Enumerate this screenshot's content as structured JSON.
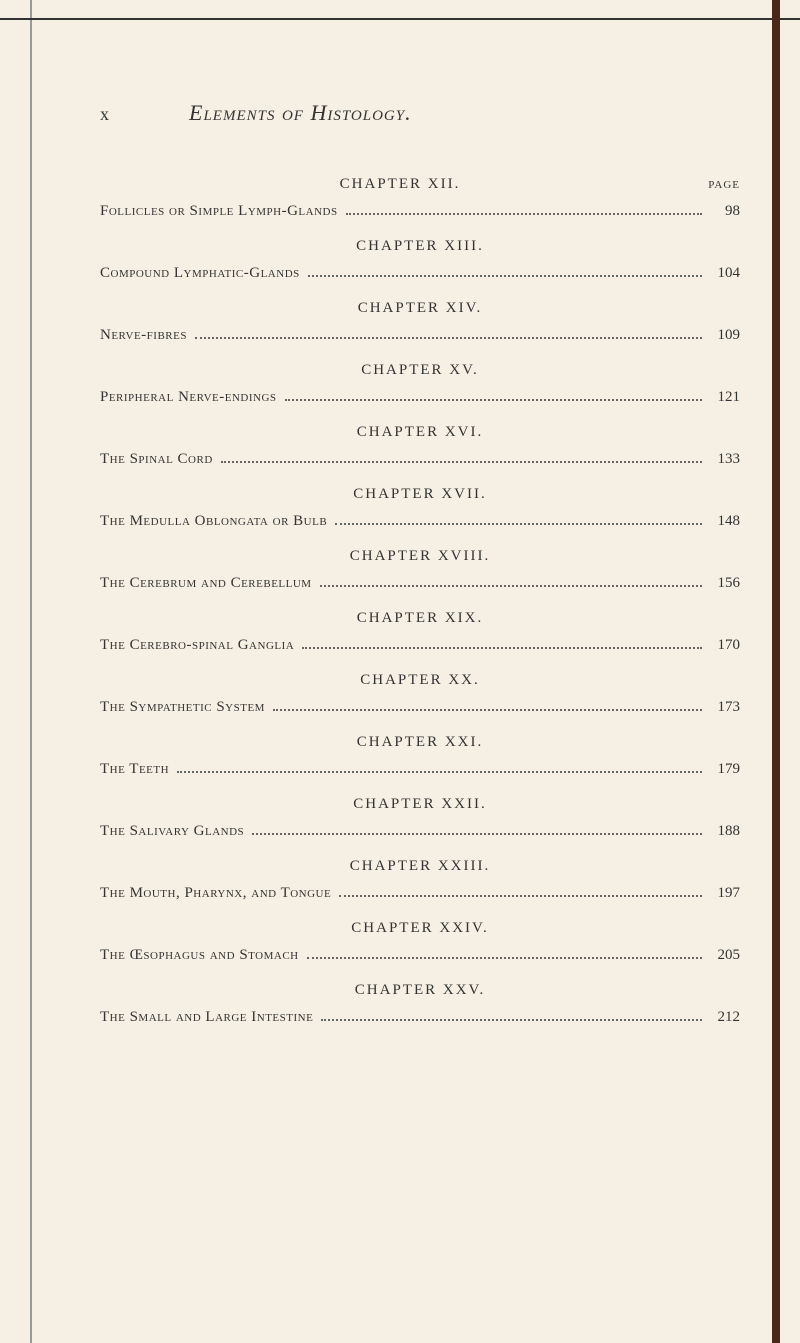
{
  "page": {
    "number_left": "x",
    "book_title": "Elements of Histology.",
    "page_label": "PAGE"
  },
  "chapters": [
    {
      "title": "CHAPTER XII.",
      "entry": "Follicles or Simple Lymph-Glands",
      "page": "98",
      "show_page_label": true
    },
    {
      "title": "CHAPTER XIII.",
      "entry": "Compound Lymphatic-Glands",
      "page": "104"
    },
    {
      "title": "CHAPTER XIV.",
      "entry": "Nerve-fibres",
      "page": "109"
    },
    {
      "title": "CHAPTER XV.",
      "entry": "Peripheral Nerve-endings",
      "page": "121"
    },
    {
      "title": "CHAPTER XVI.",
      "entry": "The Spinal Cord",
      "page": "133"
    },
    {
      "title": "CHAPTER XVII.",
      "entry": "The Medulla Oblongata or Bulb",
      "page": "148"
    },
    {
      "title": "CHAPTER XVIII.",
      "entry": "The Cerebrum and Cerebellum",
      "page": "156"
    },
    {
      "title": "CHAPTER XIX.",
      "entry": "The Cerebro-spinal Ganglia",
      "page": "170"
    },
    {
      "title": "CHAPTER XX.",
      "entry": "The Sympathetic System",
      "page": "173"
    },
    {
      "title": "CHAPTER XXI.",
      "entry": "The Teeth",
      "page": "179"
    },
    {
      "title": "CHAPTER XXII.",
      "entry": "The Salivary Glands",
      "page": "188"
    },
    {
      "title": "CHAPTER XXIII.",
      "entry": "The Mouth, Pharynx, and Tongue",
      "page": "197"
    },
    {
      "title": "CHAPTER XXIV.",
      "entry": "The Œsophagus and Stomach",
      "page": "205"
    },
    {
      "title": "CHAPTER XXV.",
      "entry": "The Small and Large Intestine",
      "page": "212"
    }
  ],
  "colors": {
    "background": "#f5f0e3",
    "text": "#333333",
    "border_right": "#4a2818"
  }
}
